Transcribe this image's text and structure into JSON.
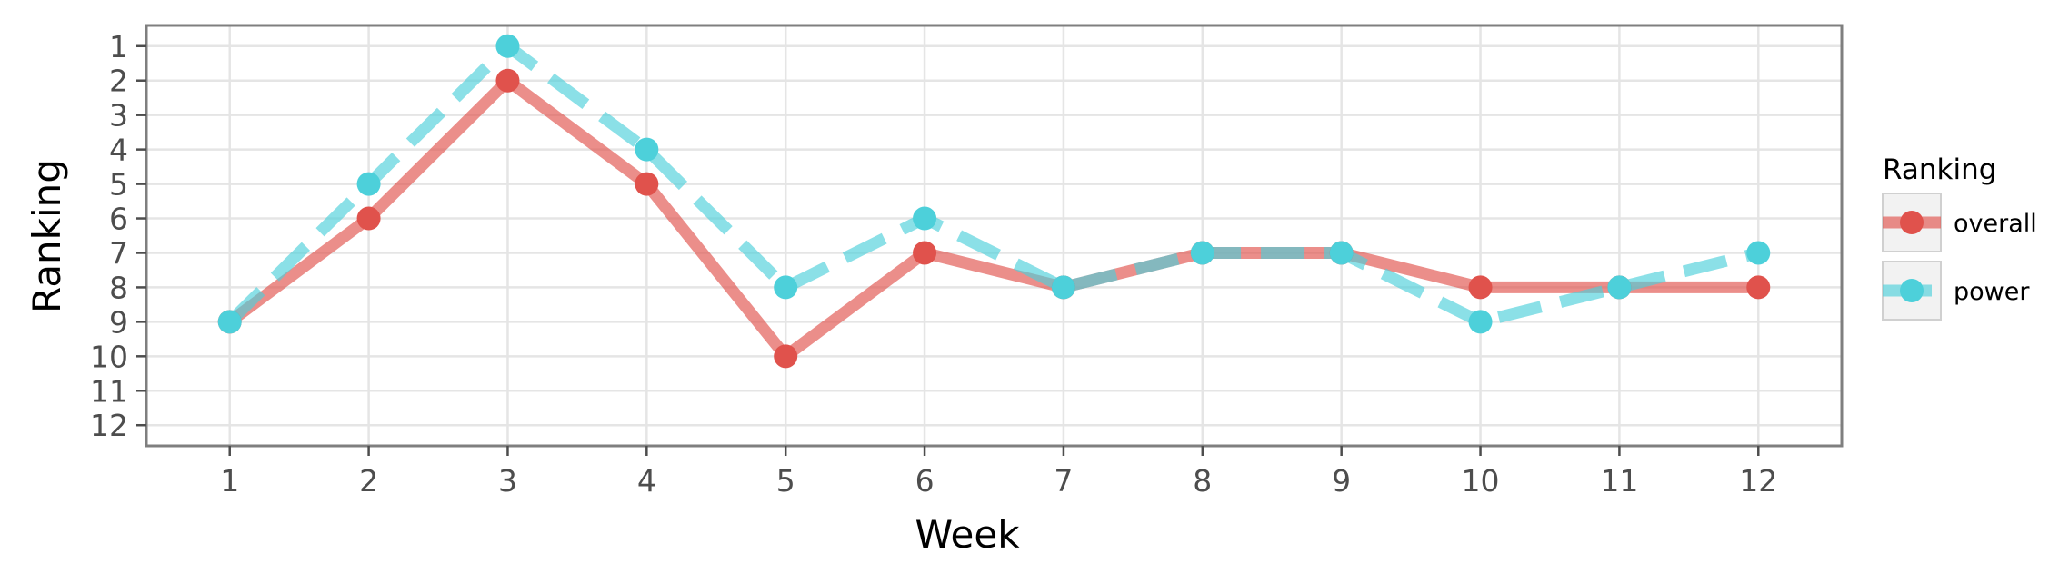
{
  "chart_data": {
    "type": "line",
    "xlabel": "Week",
    "ylabel": "Ranking",
    "x": [
      1,
      2,
      3,
      4,
      5,
      6,
      7,
      8,
      9,
      10,
      11,
      12
    ],
    "xlim": [
      0.4,
      12.6
    ],
    "ylim": [
      12.6,
      0.4
    ],
    "y_reversed": true,
    "xticks": [
      1,
      2,
      3,
      4,
      5,
      6,
      7,
      8,
      9,
      10,
      11,
      12
    ],
    "yticks": [
      1,
      2,
      3,
      4,
      5,
      6,
      7,
      8,
      9,
      10,
      11,
      12
    ],
    "grid": true,
    "legend": {
      "title": "Ranking",
      "placement": "right"
    },
    "series": [
      {
        "name": "overall",
        "values": [
          9,
          6,
          2,
          5,
          10,
          7,
          8,
          7,
          7,
          8,
          8,
          8
        ],
        "color": "#E0524C",
        "dash": "solid"
      },
      {
        "name": "power",
        "values": [
          9,
          5,
          1,
          4,
          8,
          6,
          8,
          7,
          7,
          9,
          8,
          7
        ],
        "color": "#4DD0DA",
        "dash": "dashed"
      }
    ]
  }
}
